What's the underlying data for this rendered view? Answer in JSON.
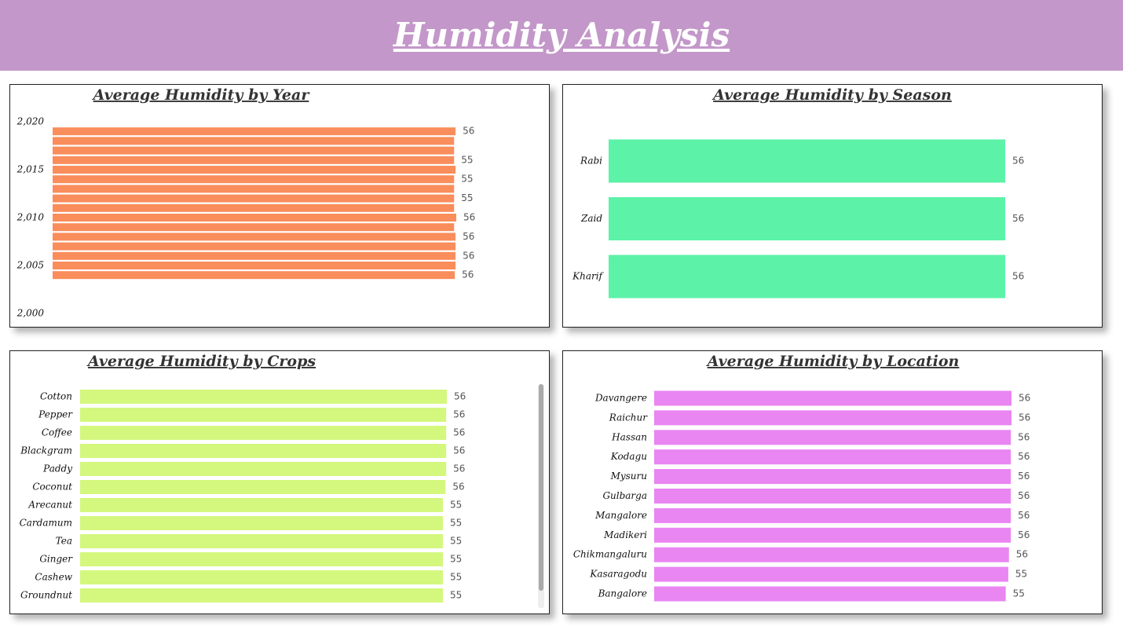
{
  "title": "Humidity Analysis",
  "chart_data": [
    {
      "type": "bar",
      "orientation": "horizontal",
      "title": "Average Humidity by Year",
      "x": [
        2004,
        2005,
        2006,
        2007,
        2008,
        2009,
        2010,
        2011,
        2012,
        2013,
        2014,
        2015,
        2016,
        2017,
        2018,
        2019
      ],
      "values": [
        55.5,
        55.6,
        55.6,
        55.6,
        55.6,
        55.4,
        55.7,
        55.4,
        55.4,
        55.4,
        55.4,
        55.6,
        55.4,
        55.4,
        55.4,
        55.6
      ],
      "value_labels": [
        "56",
        null,
        "56",
        null,
        "56",
        null,
        "56",
        null,
        "55",
        null,
        "55",
        null,
        "55",
        null,
        null,
        "56"
      ],
      "color": "#f98d5b",
      "ylim": [
        2000,
        2020
      ],
      "yticks": [
        {
          "value": 2000,
          "label": "2,000"
        },
        {
          "value": 2005,
          "label": "2,005"
        },
        {
          "value": 2010,
          "label": "2,010"
        },
        {
          "value": 2015,
          "label": "2,015"
        },
        {
          "value": 2020,
          "label": "2,020"
        }
      ]
    },
    {
      "type": "bar",
      "orientation": "horizontal",
      "title": "Average Humidity by Season",
      "categories": [
        "Rabi",
        "Zaid",
        "Kharif"
      ],
      "values": [
        56,
        56,
        56
      ],
      "color": "#5cf2a8"
    },
    {
      "type": "bar",
      "orientation": "horizontal",
      "title": "Average Humidity by Crops",
      "categories": [
        "Cotton",
        "Pepper",
        "Coffee",
        "Blackgram",
        "Paddy",
        "Coconut",
        "Arecanut",
        "Cardamum",
        "Tea",
        "Ginger",
        "Cashew",
        "Groundnut"
      ],
      "values": [
        55.9,
        55.8,
        55.8,
        55.8,
        55.8,
        55.7,
        55.3,
        55.3,
        55.3,
        55.3,
        55.3,
        55.3
      ],
      "value_labels": [
        "56",
        "56",
        "56",
        "56",
        "56",
        "56",
        "55",
        "55",
        "55",
        "55",
        "55",
        "55"
      ],
      "color": "#d4f77e"
    },
    {
      "type": "bar",
      "orientation": "horizontal",
      "title": "Average Humidity by Location",
      "categories": [
        "Davangere",
        "Raichur",
        "Hassan",
        "Kodagu",
        "Mysuru",
        "Gulbarga",
        "Mangalore",
        "Madikeri",
        "Chikmangaluru",
        "Kasaragodu",
        "Bangalore"
      ],
      "values": [
        55.9,
        55.9,
        55.8,
        55.8,
        55.8,
        55.8,
        55.8,
        55.8,
        55.5,
        55.4,
        55.0
      ],
      "value_labels": [
        "56",
        "56",
        "56",
        "56",
        "56",
        "56",
        "56",
        "56",
        "56",
        "55",
        "55"
      ],
      "color": "#e986f2"
    }
  ]
}
